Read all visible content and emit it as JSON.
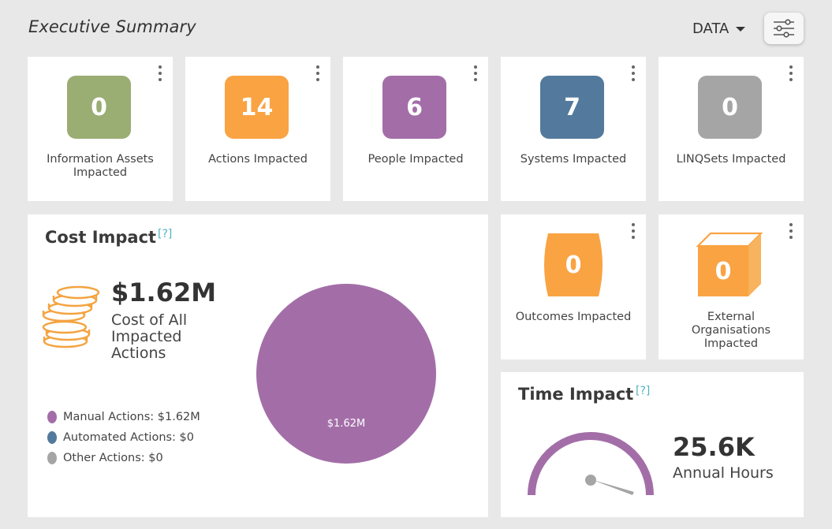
{
  "header": {
    "title": "Executive Summary",
    "data_menu_label": "DATA",
    "filter_icon": "sliders-icon"
  },
  "tiles": [
    {
      "value": "0",
      "label": "Information Assets Impacted",
      "color": "#9aad73"
    },
    {
      "value": "14",
      "label": "Actions Impacted",
      "color": "#f9a343"
    },
    {
      "value": "6",
      "label": "People Impacted",
      "color": "#a36ea8"
    },
    {
      "value": "7",
      "label": "Systems Impacted",
      "color": "#537a9c"
    },
    {
      "value": "0",
      "label": "LINQSets Impacted",
      "color": "#a5a5a5"
    }
  ],
  "outcomes": {
    "value": "0",
    "label": "Outcomes Impacted",
    "color": "#f9a343"
  },
  "external": {
    "value": "0",
    "label": "External Organisations Impacted",
    "color": "#f9a343"
  },
  "cost_impact": {
    "title": "Cost Impact",
    "help": "[?]",
    "value": "$1.62M",
    "subtitle": "Cost of All Impacted Actions",
    "coin_icon": "coins-icon",
    "legend": [
      {
        "label": "Manual Actions: $1.62M",
        "color": "#a36ea8"
      },
      {
        "label": "Automated Actions: $0",
        "color": "#537a9c"
      },
      {
        "label": "Other Actions: $0",
        "color": "#a5a5a5"
      }
    ]
  },
  "time_impact": {
    "title": "Time Impact",
    "help": "[?]",
    "value": "25.6K",
    "subtitle": "Annual Hours",
    "gauge_icon": "gauge-icon"
  },
  "chart_data": {
    "type": "pie",
    "title": "",
    "labels": [
      "Manual Actions",
      "Automated Actions",
      "Other Actions"
    ],
    "values": [
      1.62,
      0,
      0
    ],
    "units": "$M",
    "colors": [
      "#a36ea8",
      "#537a9c",
      "#a5a5a5"
    ],
    "data_labels": [
      "$1.62M",
      "",
      ""
    ]
  }
}
